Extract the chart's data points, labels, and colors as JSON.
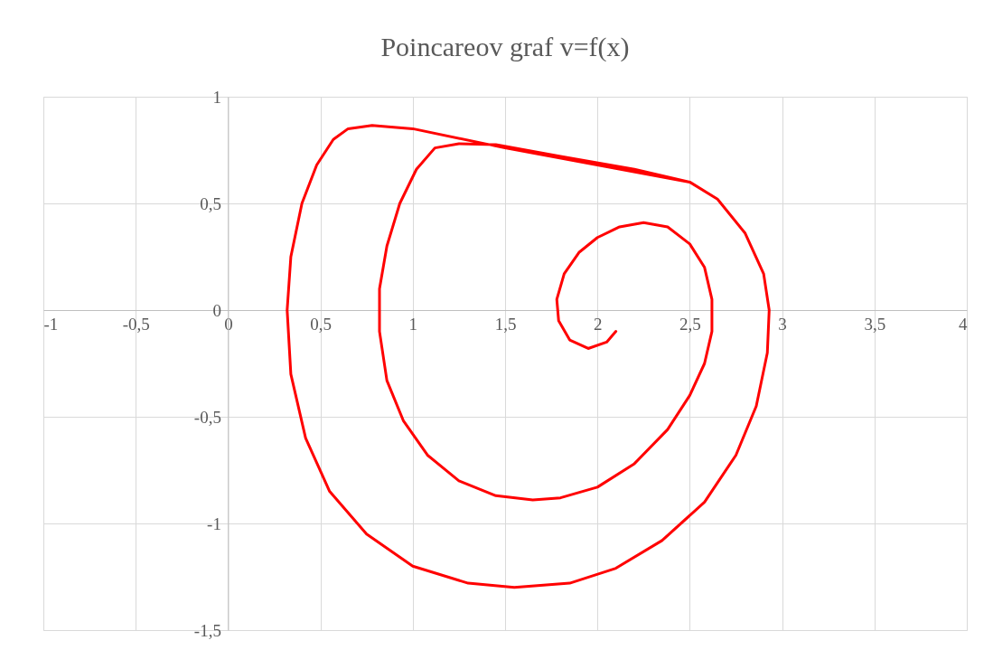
{
  "chart_data": {
    "type": "line",
    "title": "Poincareov graf v=f(x)",
    "series": [
      {
        "color": "#ff0000",
        "x": [
          2.1,
          2.05,
          1.95,
          1.85,
          1.79,
          1.78,
          1.82,
          1.9,
          2.0,
          2.12,
          2.25,
          2.38,
          2.5,
          2.58,
          2.62,
          2.62,
          2.58,
          2.5,
          2.38,
          2.2,
          2.0,
          1.8,
          1.65,
          1.45,
          1.25,
          1.08,
          0.95,
          0.86,
          0.82,
          0.82,
          0.86,
          0.93,
          1.02,
          1.12,
          1.25,
          1.45,
          1.8,
          2.2,
          2.5,
          2.65,
          2.8,
          2.9,
          2.93,
          2.92,
          2.86,
          2.75,
          2.58,
          2.35,
          2.1,
          1.85,
          1.55,
          1.3,
          1.0,
          0.75,
          0.55,
          0.42,
          0.34,
          0.32,
          0.34,
          0.4,
          0.48,
          0.57,
          0.65,
          0.78,
          1.0,
          1.5,
          2.0,
          2.5,
          2.65,
          2.8,
          2.9,
          2.93,
          2.92,
          2.86,
          2.75,
          2.58,
          2.35,
          2.1,
          1.85,
          1.55,
          1.3,
          1.0,
          0.75,
          0.55,
          0.42,
          0.34,
          0.32,
          0.34,
          0.4,
          0.48,
          0.57,
          0.65,
          0.78,
          1.0,
          1.5
        ],
        "values": [
          -0.1,
          -0.15,
          -0.18,
          -0.14,
          -0.05,
          0.05,
          0.17,
          0.27,
          0.34,
          0.39,
          0.41,
          0.39,
          0.31,
          0.2,
          0.05,
          -0.1,
          -0.25,
          -0.4,
          -0.56,
          -0.72,
          -0.83,
          -0.88,
          -0.89,
          -0.87,
          -0.8,
          -0.68,
          -0.52,
          -0.33,
          -0.1,
          0.1,
          0.3,
          0.5,
          0.66,
          0.76,
          0.78,
          0.775,
          0.72,
          0.66,
          0.6,
          0.52,
          0.36,
          0.17,
          0,
          -0.2,
          -0.45,
          -0.68,
          -0.9,
          -1.08,
          -1.21,
          -1.28,
          -1.3,
          -1.28,
          -1.2,
          -1.05,
          -0.85,
          -0.6,
          -0.3,
          0,
          0.25,
          0.5,
          0.68,
          0.8,
          0.85,
          0.865,
          0.85,
          0.76,
          0.68,
          0.6,
          0.52,
          0.36,
          0.17,
          0,
          -0.2,
          -0.45,
          -0.68,
          -0.9,
          -1.08,
          -1.21,
          -1.28,
          -1.3,
          -1.28,
          -1.2,
          -1.05,
          -0.85,
          -0.6,
          -0.3,
          0,
          0.25,
          0.5,
          0.68,
          0.8,
          0.85,
          0.865,
          0.85,
          0.76
        ]
      }
    ],
    "xlim": [
      -1,
      4
    ],
    "xticks": [
      -1,
      {
        "value": -0.5,
        "label": "-0,5"
      },
      0,
      {
        "value": 0.5,
        "label": "0,5"
      },
      1,
      {
        "value": 1.5,
        "label": "1,5"
      },
      2,
      {
        "value": 2.5,
        "label": "2,5"
      },
      3,
      {
        "value": 3.5,
        "label": "3,5"
      },
      4
    ],
    "ylim": [
      -1.5,
      1
    ],
    "yticks": [
      {
        "value": -1.5,
        "label": "-1,5"
      },
      -1,
      {
        "value": -0.5,
        "label": "-0,5"
      },
      0,
      {
        "value": 0.5,
        "label": "0,5"
      },
      1
    ],
    "grid": true,
    "marker": "none",
    "line_style": "solid"
  }
}
